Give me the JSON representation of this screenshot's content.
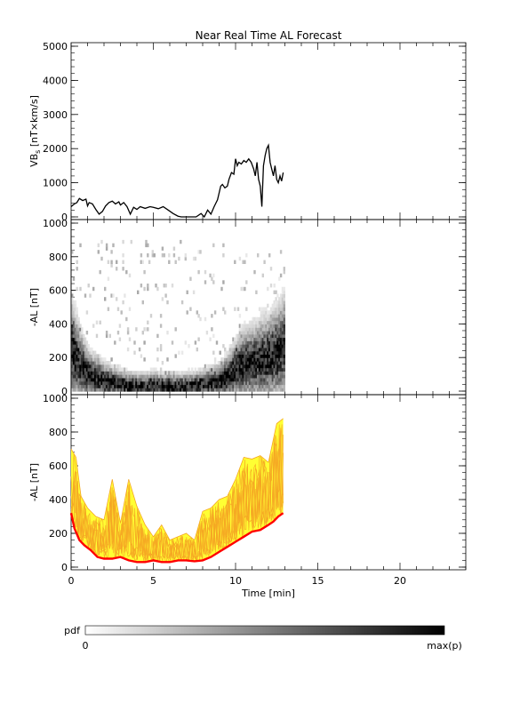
{
  "chart_data": {
    "title": "Near Real Time AL Forecast",
    "x_axis": {
      "label": "Time [min]",
      "range": [
        0,
        24
      ],
      "ticks": [
        0,
        5,
        10,
        15,
        20
      ]
    },
    "panels": [
      {
        "type": "line",
        "ylabel": "VB_s [nT×km/s]",
        "ylabel_base": "VB",
        "ylabel_sub": "s",
        "ylabel_rest": " [nT×km/s]",
        "ylim": [
          0,
          5000
        ],
        "yticks": [
          0,
          1000,
          2000,
          3000,
          4000,
          5000
        ],
        "line_color": "#000000",
        "series": [
          {
            "x": [
              0,
              0.2,
              0.35,
              0.5,
              0.7,
              0.9,
              1.0,
              1.1,
              1.3,
              1.5,
              1.7,
              1.9,
              2.1,
              2.3,
              2.5,
              2.7,
              2.9,
              3.0,
              3.2,
              3.4,
              3.6,
              3.8,
              4.0,
              4.2,
              4.5,
              4.8,
              5.0,
              5.3,
              5.6,
              5.9,
              6.2,
              6.5,
              6.7,
              7.0,
              7.3,
              7.6,
              7.9,
              8.1,
              8.3,
              8.5,
              8.7,
              8.9,
              9.0,
              9.1,
              9.2,
              9.35,
              9.5,
              9.6,
              9.75,
              9.9,
              10.0,
              10.1,
              10.2,
              10.35,
              10.5,
              10.65,
              10.8,
              10.95,
              11.1,
              11.2,
              11.3,
              11.4,
              11.5,
              11.6,
              11.7,
              11.8,
              11.9,
              12.0,
              12.1,
              12.2,
              12.3,
              12.4,
              12.5,
              12.6,
              12.7,
              12.8,
              12.9
            ],
            "y": [
              300,
              380,
              420,
              540,
              480,
              520,
              320,
              420,
              380,
              220,
              80,
              160,
              320,
              420,
              460,
              380,
              440,
              350,
              420,
              300,
              80,
              280,
              220,
              300,
              250,
              300,
              280,
              240,
              300,
              200,
              100,
              20,
              0,
              0,
              0,
              0,
              100,
              0,
              200,
              80,
              300,
              500,
              700,
              900,
              950,
              850,
              900,
              1100,
              1300,
              1250,
              1700,
              1500,
              1600,
              1550,
              1650,
              1600,
              1700,
              1600,
              1400,
              1200,
              1600,
              1100,
              900,
              300,
              1500,
              1800,
              2000,
              2100,
              1600,
              1400,
              1200,
              1500,
              1100,
              1000,
              1200,
              1050,
              1300
            ]
          }
        ]
      },
      {
        "type": "heatmap",
        "ylabel": "-AL [nT]",
        "ylim": [
          0,
          1000
        ],
        "yticks": [
          0,
          200,
          400,
          600,
          800,
          1000
        ],
        "x_extent": [
          0,
          13
        ],
        "x_bin": 0.1,
        "y_bin": 20,
        "ridge": {
          "x": [
            0,
            0.5,
            1,
            1.5,
            2,
            2.5,
            3,
            3.5,
            4,
            4.5,
            5,
            5.5,
            6,
            6.5,
            7,
            7.5,
            8,
            8.5,
            9,
            9.5,
            10,
            10.5,
            11,
            11.5,
            12,
            12.5,
            13
          ],
          "y": [
            240,
            160,
            100,
            80,
            60,
            50,
            40,
            35,
            30,
            30,
            35,
            30,
            30,
            30,
            30,
            35,
            40,
            50,
            60,
            90,
            130,
            160,
            170,
            190,
            200,
            230,
            260
          ]
        },
        "colorbar": {
          "label": "pdf",
          "min_label": "0",
          "max_label": "max(p)",
          "gradient": [
            "#ffffff",
            "#000000"
          ]
        }
      },
      {
        "type": "area",
        "ylabel": "-AL [nT]",
        "ylim": [
          0,
          1000
        ],
        "yticks": [
          0,
          200,
          400,
          600,
          800,
          1000
        ],
        "band_color": "#ffff33",
        "ensemble_color": "#f5a623",
        "median_color": "#ff0000",
        "series": [
          {
            "name": "upper",
            "x": [
              0,
              0.3,
              0.6,
              1.0,
              1.5,
              2.0,
              2.5,
              3.0,
              3.5,
              4.0,
              4.5,
              5.0,
              5.5,
              6.0,
              6.5,
              7.0,
              7.5,
              8.0,
              8.5,
              9.0,
              9.5,
              10.0,
              10.5,
              11.0,
              11.5,
              12.0,
              12.5,
              12.9
            ],
            "y": [
              700,
              650,
              420,
              350,
              300,
              280,
              520,
              260,
              520,
              360,
              250,
              180,
              250,
              160,
              180,
              200,
              160,
              330,
              350,
              400,
              420,
              520,
              650,
              640,
              660,
              620,
              850,
              880
            ]
          },
          {
            "name": "median",
            "x": [
              0,
              0.2,
              0.5,
              0.8,
              1.2,
              1.6,
              2.0,
              2.5,
              3.0,
              3.5,
              4.0,
              4.5,
              5.0,
              5.5,
              6.0,
              6.5,
              7.0,
              7.5,
              8.0,
              8.5,
              9.0,
              9.5,
              10.0,
              10.5,
              11.0,
              11.5,
              12.0,
              12.3,
              12.6,
              12.9
            ],
            "y": [
              320,
              230,
              160,
              130,
              100,
              60,
              50,
              50,
              60,
              40,
              30,
              30,
              40,
              30,
              30,
              40,
              40,
              35,
              40,
              60,
              90,
              120,
              150,
              180,
              210,
              220,
              250,
              270,
              300,
              320
            ]
          }
        ]
      }
    ]
  }
}
